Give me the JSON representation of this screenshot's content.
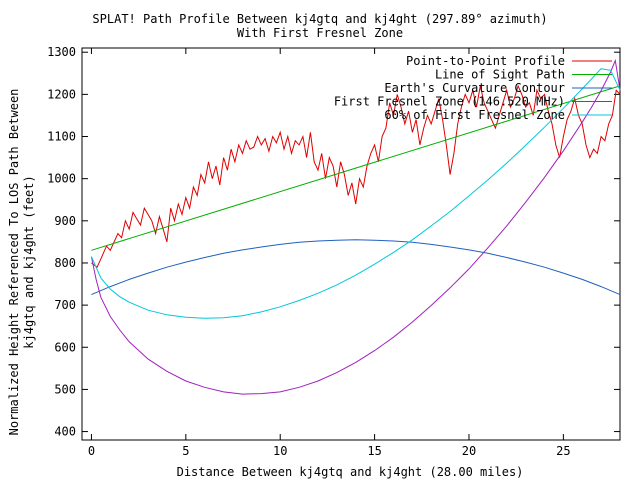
{
  "chart_data": {
    "type": "line",
    "title": "SPLAT! Path Profile Between kj4gtq and kj4ght (297.89° azimuth)",
    "subtitle": "With First Fresnel Zone",
    "xlabel": "Distance Between kj4gtq and kj4ght (28.00 miles)",
    "ylabel_line1": "Normalized Height Referenced To LOS Path Between",
    "ylabel_line2": "kj4gtq and kj4ght (feet)",
    "xlim": [
      -0.5,
      28.0
    ],
    "ylim": [
      380,
      1310
    ],
    "xticks": [
      0,
      5,
      10,
      15,
      20,
      25
    ],
    "yticks": [
      400,
      500,
      600,
      700,
      800,
      900,
      1000,
      1100,
      1200,
      1300
    ],
    "grid": false,
    "legend_position": "top-right",
    "series": [
      {
        "name": "Point-to-Point Profile",
        "color": "#e00000",
        "x": [
          0,
          0.3,
          0.5,
          0.8,
          1.0,
          1.2,
          1.4,
          1.6,
          1.8,
          2.0,
          2.2,
          2.4,
          2.6,
          2.8,
          3.0,
          3.2,
          3.4,
          3.6,
          3.8,
          4.0,
          4.2,
          4.4,
          4.6,
          4.8,
          5.0,
          5.2,
          5.4,
          5.6,
          5.8,
          6.0,
          6.2,
          6.4,
          6.6,
          6.8,
          7.0,
          7.2,
          7.4,
          7.6,
          7.8,
          8.0,
          8.2,
          8.4,
          8.6,
          8.8,
          9.0,
          9.2,
          9.4,
          9.6,
          9.8,
          10.0,
          10.2,
          10.4,
          10.6,
          10.8,
          11.0,
          11.2,
          11.4,
          11.6,
          11.8,
          12.0,
          12.2,
          12.4,
          12.6,
          12.8,
          13.0,
          13.2,
          13.4,
          13.6,
          13.8,
          14.0,
          14.2,
          14.4,
          14.6,
          14.8,
          15.0,
          15.2,
          15.4,
          15.6,
          15.8,
          16.0,
          16.2,
          16.4,
          16.6,
          16.8,
          17.0,
          17.2,
          17.4,
          17.6,
          17.8,
          18.0,
          18.2,
          18.4,
          18.6,
          18.8,
          19.0,
          19.2,
          19.4,
          19.6,
          19.8,
          20.0,
          20.2,
          20.4,
          20.6,
          20.8,
          21.0,
          21.2,
          21.4,
          21.6,
          21.8,
          22.0,
          22.2,
          22.4,
          22.6,
          22.8,
          23.0,
          23.2,
          23.4,
          23.6,
          23.8,
          24.0,
          24.2,
          24.4,
          24.6,
          24.8,
          25.0,
          25.2,
          25.4,
          25.6,
          25.8,
          26.0,
          26.2,
          26.4,
          26.6,
          26.8,
          27.0,
          27.2,
          27.4,
          27.6,
          27.8,
          28.0
        ],
        "values": [
          800,
          790,
          810,
          840,
          830,
          850,
          870,
          860,
          900,
          880,
          920,
          905,
          890,
          930,
          915,
          900,
          870,
          910,
          880,
          850,
          930,
          900,
          940,
          915,
          955,
          930,
          980,
          960,
          1010,
          990,
          1040,
          1000,
          1030,
          985,
          1050,
          1020,
          1070,
          1040,
          1080,
          1060,
          1090,
          1070,
          1075,
          1100,
          1080,
          1095,
          1065,
          1100,
          1085,
          1110,
          1070,
          1100,
          1060,
          1090,
          1080,
          1100,
          1050,
          1110,
          1040,
          1020,
          1060,
          1000,
          1050,
          1030,
          980,
          1040,
          1010,
          960,
          990,
          940,
          1000,
          980,
          1030,
          1060,
          1080,
          1040,
          1100,
          1120,
          1180,
          1150,
          1200,
          1170,
          1130,
          1160,
          1110,
          1140,
          1080,
          1120,
          1150,
          1130,
          1160,
          1190,
          1140,
          1080,
          1010,
          1060,
          1130,
          1170,
          1200,
          1180,
          1210,
          1170,
          1220,
          1180,
          1160,
          1140,
          1120,
          1150,
          1180,
          1210,
          1170,
          1190,
          1220,
          1200,
          1170,
          1180,
          1150,
          1210,
          1190,
          1200,
          1160,
          1130,
          1080,
          1050,
          1100,
          1140,
          1160,
          1190,
          1150,
          1130,
          1080,
          1050,
          1070,
          1060,
          1100,
          1090,
          1130,
          1150,
          1210,
          1200
        ]
      },
      {
        "name": "Line of Sight Path",
        "color": "#00b000",
        "x": [
          0,
          28
        ],
        "values": [
          830,
          1220
        ]
      },
      {
        "name": "Earth's Curvature Contour",
        "color": "#2060c0",
        "x": [
          0,
          1,
          2,
          3,
          4,
          5,
          6,
          7,
          8,
          9,
          10,
          11,
          12,
          13,
          14,
          15,
          16,
          17,
          18,
          19,
          20,
          21,
          22,
          23,
          24,
          25,
          26,
          27,
          28
        ],
        "values": [
          725,
          744,
          761,
          776,
          790,
          802,
          813,
          823,
          831,
          838,
          844,
          849,
          852,
          854,
          855,
          854,
          852,
          849,
          844,
          838,
          831,
          823,
          813,
          802,
          790,
          776,
          761,
          744,
          725
        ]
      },
      {
        "name": "First Fresnel Zone (146.520 MHz)",
        "color": "#a020c0",
        "x": [
          0,
          0.25,
          0.5,
          1,
          1.5,
          2,
          3,
          4,
          5,
          6,
          7,
          8,
          9,
          10,
          11,
          12,
          13,
          14,
          15,
          16,
          17,
          18,
          19,
          20,
          21,
          22,
          23,
          24,
          25,
          26,
          26.5,
          27,
          27.5,
          27.75,
          28
        ],
        "values": [
          815,
          760,
          718,
          673,
          641,
          613,
          572,
          543,
          520,
          505,
          494,
          489,
          490,
          494,
          505,
          520,
          540,
          564,
          592,
          624,
          660,
          699,
          741,
          786,
          836,
          888,
          944,
          1003,
          1066,
          1134,
          1170,
          1209,
          1253,
          1280,
          1210
        ]
      },
      {
        "name": "60% of First Fresnel Zone",
        "color": "#00c8d8",
        "x": [
          0,
          0.5,
          1,
          1.5,
          2,
          3,
          4,
          5,
          6,
          7,
          8,
          9,
          10,
          11,
          12,
          13,
          14,
          15,
          16,
          17,
          18,
          19,
          20,
          21,
          22,
          23,
          24,
          25,
          26,
          27,
          27.5,
          28
        ],
        "values": [
          815,
          764,
          738,
          720,
          707,
          688,
          677,
          671,
          669,
          670,
          675,
          684,
          696,
          711,
          728,
          748,
          771,
          797,
          825,
          855,
          888,
          922,
          959,
          997,
          1037,
          1079,
          1122,
          1167,
          1213,
          1261,
          1257,
          1210
        ]
      }
    ]
  }
}
